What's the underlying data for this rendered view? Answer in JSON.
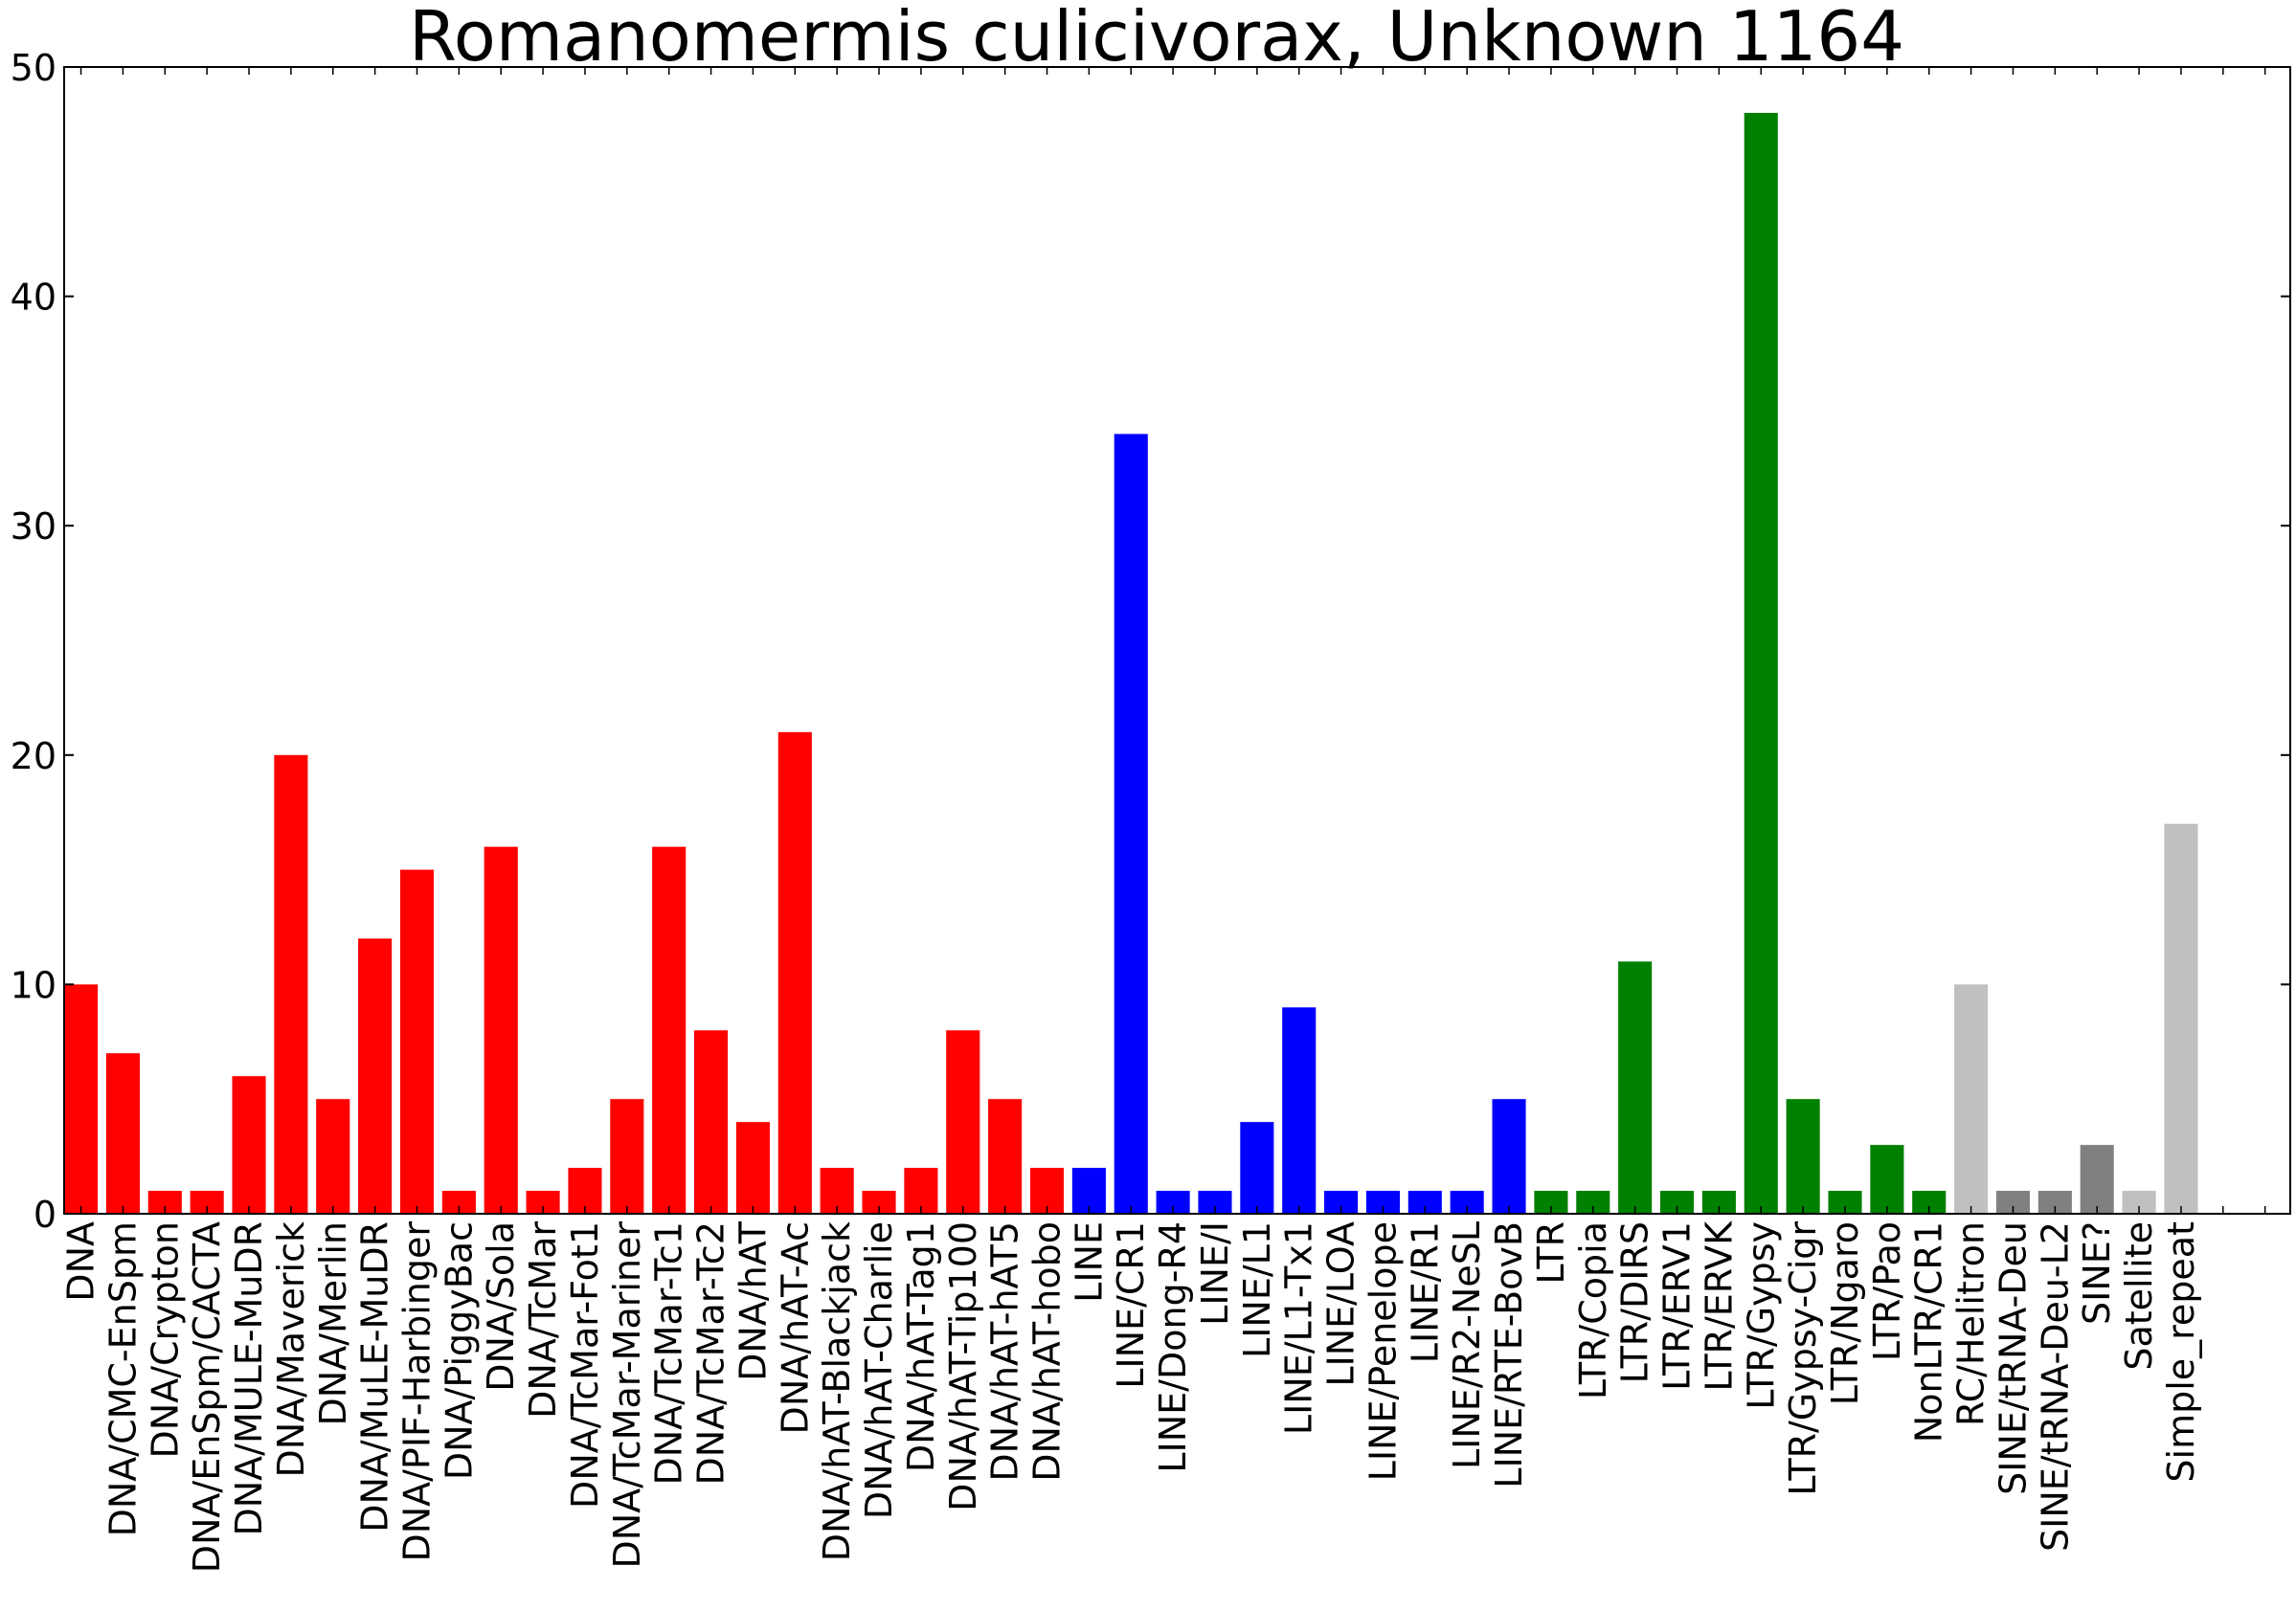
{
  "chart_data": {
    "type": "bar",
    "title": "Romanomermis culicivorax, Unknown 1164",
    "xlabel": "",
    "ylabel": "",
    "ylim": [
      0,
      50
    ],
    "yticks": [
      0,
      10,
      20,
      30,
      40,
      50
    ],
    "grid": false,
    "legend": "none",
    "colors": {
      "DNA": "#ff0000",
      "LINE": "#0000ff",
      "LTR": "#008000",
      "RC": "#c0c0c0",
      "SINE": "#808080",
      "Other": "#c0c0c0"
    },
    "categories": [
      "DNA",
      "DNA/CMC-EnSpm",
      "DNA/Crypton",
      "DNA/EnSpm/CACTA",
      "DNA/MULE-MuDR",
      "DNA/Maverick",
      "DNA/Merlin",
      "DNA/MuLE-MuDR",
      "DNA/PIF-Harbinger",
      "DNA/PiggyBac",
      "DNA/Sola",
      "DNA/TcMar",
      "DNA/TcMar-Fot1",
      "DNA/TcMar-Mariner",
      "DNA/TcMar-Tc1",
      "DNA/TcMar-Tc2",
      "DNA/hAT",
      "DNA/hAT-Ac",
      "DNA/hAT-Blackjack",
      "DNA/hAT-Charlie",
      "DNA/hAT-Tag1",
      "DNA/hAT-Tip100",
      "DNA/hAT-hAT5",
      "DNA/hAT-hobo",
      "LINE",
      "LINE/CR1",
      "LINE/Dong-R4",
      "LINE/I",
      "LINE/L1",
      "LINE/L1-Tx1",
      "LINE/LOA",
      "LINE/Penelope",
      "LINE/R1",
      "LINE/R2-NeSL",
      "LINE/RTE-BovB",
      "LTR",
      "LTR/Copia",
      "LTR/DIRS",
      "LTR/ERV1",
      "LTR/ERVK",
      "LTR/Gypsy",
      "LTR/Gypsy-Cigr",
      "LTR/Ngaro",
      "LTR/Pao",
      "NonLTR/CR1",
      "RC/Helitron",
      "SINE/tRNA-Deu",
      "SINE/tRNA-Deu-L2",
      "SINE?",
      "Satellite",
      "Simple_repeat"
    ],
    "values": [
      10,
      7,
      1,
      1,
      6,
      20,
      5,
      12,
      15,
      1,
      16,
      1,
      2,
      5,
      16,
      8,
      4,
      21,
      2,
      1,
      2,
      8,
      5,
      2,
      2,
      34,
      1,
      1,
      4,
      9,
      1,
      1,
      1,
      1,
      5,
      1,
      1,
      11,
      1,
      1,
      48,
      5,
      1,
      3,
      1,
      10,
      1,
      1,
      3,
      1,
      17
    ],
    "bar_colors": [
      "#ff0000",
      "#ff0000",
      "#ff0000",
      "#ff0000",
      "#ff0000",
      "#ff0000",
      "#ff0000",
      "#ff0000",
      "#ff0000",
      "#ff0000",
      "#ff0000",
      "#ff0000",
      "#ff0000",
      "#ff0000",
      "#ff0000",
      "#ff0000",
      "#ff0000",
      "#ff0000",
      "#ff0000",
      "#ff0000",
      "#ff0000",
      "#ff0000",
      "#ff0000",
      "#ff0000",
      "#0000ff",
      "#0000ff",
      "#0000ff",
      "#0000ff",
      "#0000ff",
      "#0000ff",
      "#0000ff",
      "#0000ff",
      "#0000ff",
      "#0000ff",
      "#0000ff",
      "#008000",
      "#008000",
      "#008000",
      "#008000",
      "#008000",
      "#008000",
      "#008000",
      "#008000",
      "#008000",
      "#008000",
      "#c0c0c0",
      "#808080",
      "#808080",
      "#808080",
      "#c0c0c0",
      "#c0c0c0"
    ]
  }
}
